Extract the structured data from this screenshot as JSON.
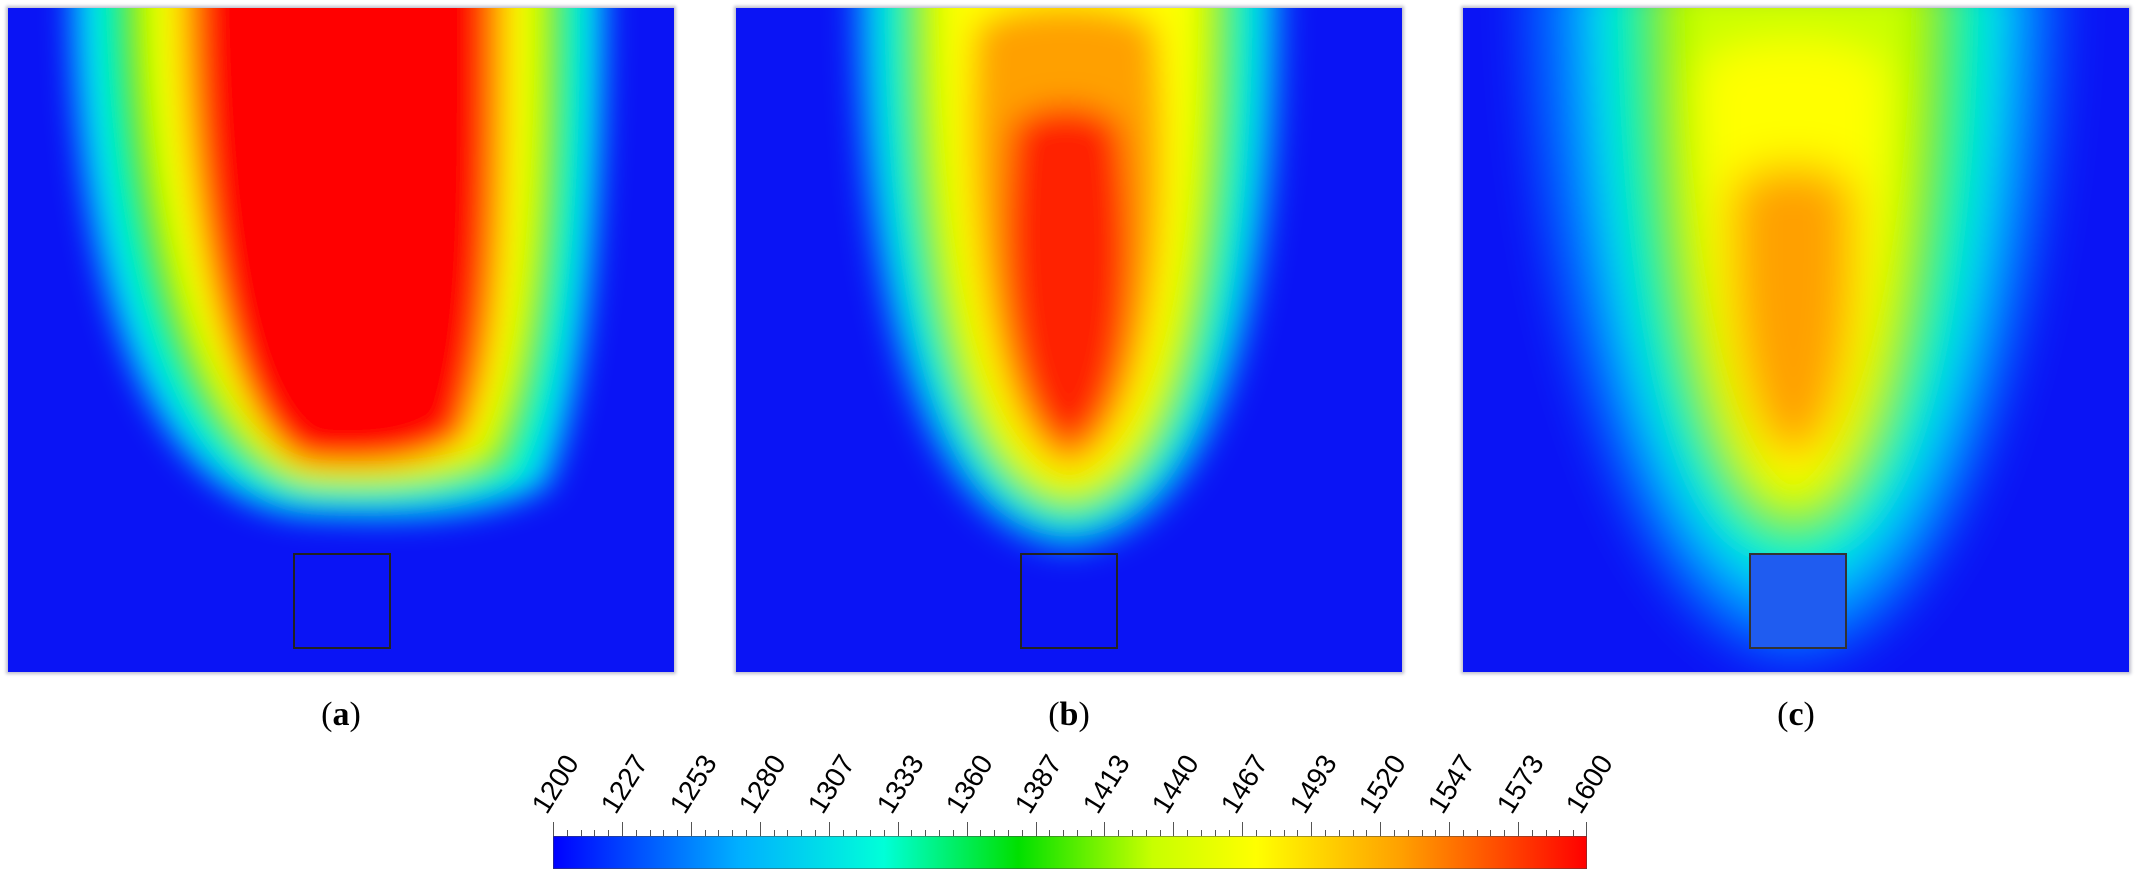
{
  "panels": [
    {
      "id": "a",
      "caption_letter": "a"
    },
    {
      "id": "b",
      "caption_letter": "b"
    },
    {
      "id": "c",
      "caption_letter": "c"
    }
  ],
  "colorbar": {
    "min": 1200,
    "max": 1600,
    "ticks": [
      "1200",
      "1227",
      "1253",
      "1280",
      "1307",
      "1333",
      "1360",
      "1387",
      "1413",
      "1440",
      "1467",
      "1493",
      "1520",
      "1547",
      "1573",
      "1600"
    ],
    "colors": [
      "#0000ff",
      "#00b0ff",
      "#00ffd8",
      "#00e000",
      "#c8ff00",
      "#ffff00",
      "#ffa000",
      "#ff0000"
    ]
  },
  "colors": {
    "background_field": "#0a14f5",
    "square_outline": "#222222"
  }
}
